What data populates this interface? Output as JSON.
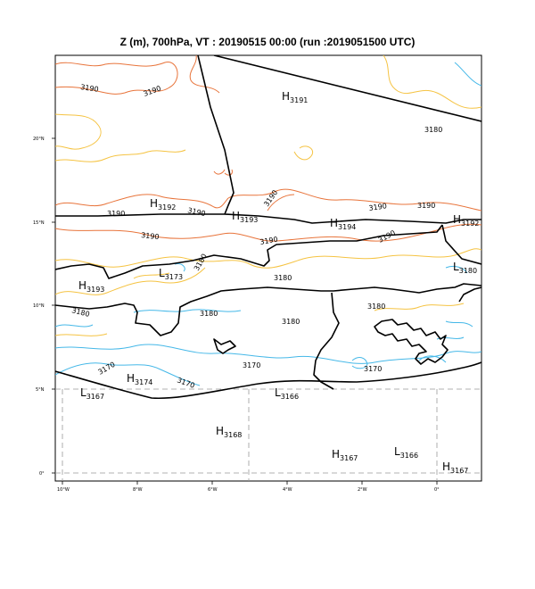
{
  "title": "Z (m), 700hPa, VT : 20190515  00:00 (run :2019051500 UTC)",
  "colors": {
    "c3190": "#e8743b",
    "c3180": "#f5c342",
    "c3170": "#45b8e8",
    "border": "#000000",
    "grid": "#999999"
  },
  "lat_ticks": [
    "20°N",
    "15°N",
    "10°N",
    "5°N",
    "0°"
  ],
  "lon_ticks": [
    "10°W",
    "8°W",
    "6°W",
    "4°W",
    "2°W",
    "0°"
  ],
  "contour_labels": [
    {
      "text": "3190",
      "name": "contour-label-3190-a"
    },
    {
      "text": "3190",
      "name": "contour-label-3190-b"
    },
    {
      "text": "3190",
      "name": "contour-label-3190-c"
    },
    {
      "text": "3190",
      "name": "contour-label-3190-d"
    },
    {
      "text": "3190",
      "name": "contour-label-3190-e"
    },
    {
      "text": "3190",
      "name": "contour-label-3190-f"
    },
    {
      "text": "3190",
      "name": "contour-label-3190-g"
    },
    {
      "text": "3190",
      "name": "contour-label-3190-h"
    },
    {
      "text": "3190",
      "name": "contour-label-3190-i"
    },
    {
      "text": "3190",
      "name": "contour-label-3190-j"
    },
    {
      "text": "3190",
      "name": "contour-label-3190-k"
    },
    {
      "text": "3180",
      "name": "contour-label-3180-a"
    },
    {
      "text": "3180",
      "name": "contour-label-3180-b"
    },
    {
      "text": "3180",
      "name": "contour-label-3180-c"
    },
    {
      "text": "3180",
      "name": "contour-label-3180-d"
    },
    {
      "text": "3180",
      "name": "contour-label-3180-e"
    },
    {
      "text": "3180",
      "name": "contour-label-3180-f"
    },
    {
      "text": "3180",
      "name": "contour-label-3180-g"
    },
    {
      "text": "3170",
      "name": "contour-label-3170-a"
    },
    {
      "text": "3170",
      "name": "contour-label-3170-b"
    },
    {
      "text": "3170",
      "name": "contour-label-3170-c"
    },
    {
      "text": "3170",
      "name": "contour-label-3170-d"
    }
  ],
  "pressure_centers": [
    {
      "letter": "H",
      "value": "3191"
    },
    {
      "letter": "H",
      "value": "3192"
    },
    {
      "letter": "H",
      "value": "3193"
    },
    {
      "letter": "H",
      "value": "3194"
    },
    {
      "letter": "H",
      "value": "3192"
    },
    {
      "letter": "L",
      "value": "3180"
    },
    {
      "letter": "L",
      "value": "3173"
    },
    {
      "letter": "H",
      "value": "3193"
    },
    {
      "letter": "H",
      "value": "3174"
    },
    {
      "letter": "L",
      "value": "3167"
    },
    {
      "letter": "L",
      "value": "3166"
    },
    {
      "letter": "H",
      "value": "3168"
    },
    {
      "letter": "H",
      "value": "3167"
    },
    {
      "letter": "L",
      "value": "3166"
    },
    {
      "letter": "H",
      "value": "3167"
    }
  ]
}
